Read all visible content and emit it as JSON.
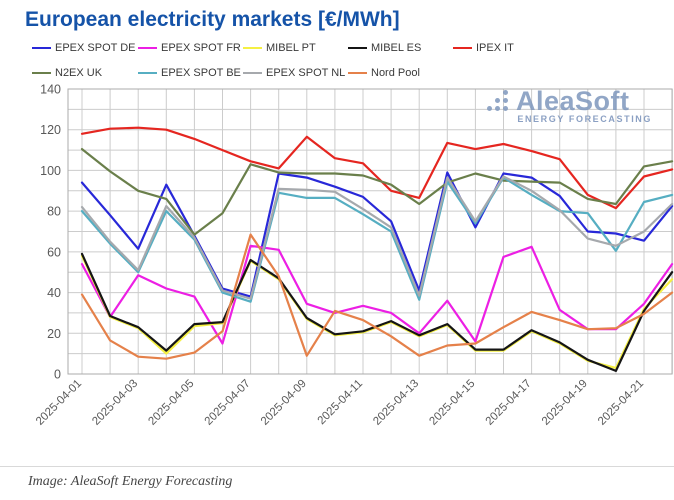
{
  "title": "European electricity markets [€/MWh]",
  "watermark": {
    "brand": "AleaSoft",
    "tagline": "ENERGY FORECASTING"
  },
  "footer": {
    "caption": "Image: AleaSoft Energy Forecasting"
  },
  "chart_data": {
    "type": "line",
    "title": "European electricity markets [€/MWh]",
    "xlabel": "",
    "ylabel": "",
    "ylim": [
      0,
      140
    ],
    "y_major_ticks": [
      0,
      20,
      40,
      60,
      80,
      100,
      120,
      140
    ],
    "grid": "major and minor gridlines, minor step 10 on y, daily on x",
    "legend_position": "top",
    "x": [
      "2025-04-01",
      "2025-04-02",
      "2025-04-03",
      "2025-04-04",
      "2025-04-05",
      "2025-04-06",
      "2025-04-07",
      "2025-04-08",
      "2025-04-09",
      "2025-04-10",
      "2025-04-11",
      "2025-04-12",
      "2025-04-13",
      "2025-04-14",
      "2025-04-15",
      "2025-04-16",
      "2025-04-17",
      "2025-04-18",
      "2025-04-19",
      "2025-04-20",
      "2025-04-21",
      "2025-04-22"
    ],
    "x_tick_labels": [
      "2025-04-01",
      "2025-04-03",
      "2025-04-05",
      "2025-04-07",
      "2025-04-09",
      "2025-04-11",
      "2025-04-13",
      "2025-04-15",
      "2025-04-17",
      "2025-04-19",
      "2025-04-21"
    ],
    "series": [
      {
        "name": "EPEX SPOT DE",
        "color": "#2828d8",
        "values": [
          94,
          78,
          61.5,
          93,
          68,
          42,
          38,
          98.5,
          96.5,
          92,
          87,
          75,
          41,
          99,
          72,
          98.5,
          96.5,
          87.5,
          70,
          69,
          65.5,
          82.5
        ]
      },
      {
        "name": "EPEX SPOT FR",
        "color": "#ec1fe4",
        "values": [
          54,
          28,
          48.5,
          42,
          38,
          15,
          63,
          61,
          34.5,
          30,
          33.5,
          30,
          20,
          36,
          16,
          57.5,
          62.5,
          31.5,
          22,
          22,
          34.5,
          54
        ]
      },
      {
        "name": "MIBEL PT",
        "color": "#f5f043",
        "values": [
          58,
          28,
          22.5,
          10,
          23.5,
          25,
          55.5,
          46.5,
          27,
          19,
          20.5,
          25.5,
          18.5,
          24,
          11.5,
          11.5,
          21,
          15,
          6.5,
          3,
          32,
          46.5
        ]
      },
      {
        "name": "MIBEL ES",
        "color": "#151515",
        "values": [
          59,
          28.5,
          23,
          11.5,
          24.5,
          25.5,
          56,
          47,
          27.5,
          19.5,
          21,
          26,
          19,
          24.5,
          12,
          12,
          21.5,
          15.5,
          7,
          1.5,
          31,
          50
        ]
      },
      {
        "name": "IPEX IT",
        "color": "#e52620",
        "values": [
          118,
          120.5,
          121,
          120,
          115.5,
          110,
          104.5,
          101,
          116.5,
          106,
          103.5,
          90,
          86.5,
          113.5,
          110.5,
          113,
          109.5,
          105.5,
          88,
          81.5,
          97,
          100.5
        ]
      },
      {
        "name": "N2EX UK",
        "color": "#6a7f4b",
        "values": [
          110.5,
          99.5,
          90,
          86,
          68.5,
          79,
          103,
          99,
          98.5,
          98.5,
          97.5,
          93,
          83.5,
          94,
          98.5,
          95,
          94.5,
          94,
          86,
          83.5,
          102,
          104.5
        ]
      },
      {
        "name": "EPEX SPOT BE",
        "color": "#56aec2",
        "values": [
          80,
          64,
          50,
          80,
          66,
          40,
          35.5,
          89,
          86.5,
          86.5,
          78.5,
          70,
          36.5,
          94.5,
          74,
          96.5,
          88,
          80,
          79,
          60.5,
          84.5,
          88
        ]
      },
      {
        "name": "EPEX SPOT NL",
        "color": "#a6a9ad",
        "values": [
          82,
          65,
          51,
          82.5,
          67,
          41,
          37,
          91,
          90.5,
          89.5,
          81,
          72,
          38.5,
          96.5,
          75,
          97,
          90,
          80.5,
          66.5,
          63,
          70,
          83.5
        ]
      },
      {
        "name": "Nord Pool",
        "color": "#e5814a",
        "values": [
          39,
          16.5,
          8.5,
          7.5,
          10.5,
          21,
          68.5,
          48,
          9,
          31,
          26.5,
          18.5,
          9,
          14,
          15,
          23,
          30.5,
          26.5,
          22,
          22.5,
          29.5,
          40
        ]
      }
    ]
  },
  "colors": {
    "title": "#1553a8",
    "axis_text": "#595959",
    "gridline": "#cccccc",
    "plot_frame": "#ababab",
    "watermark": "#7e96bc"
  }
}
